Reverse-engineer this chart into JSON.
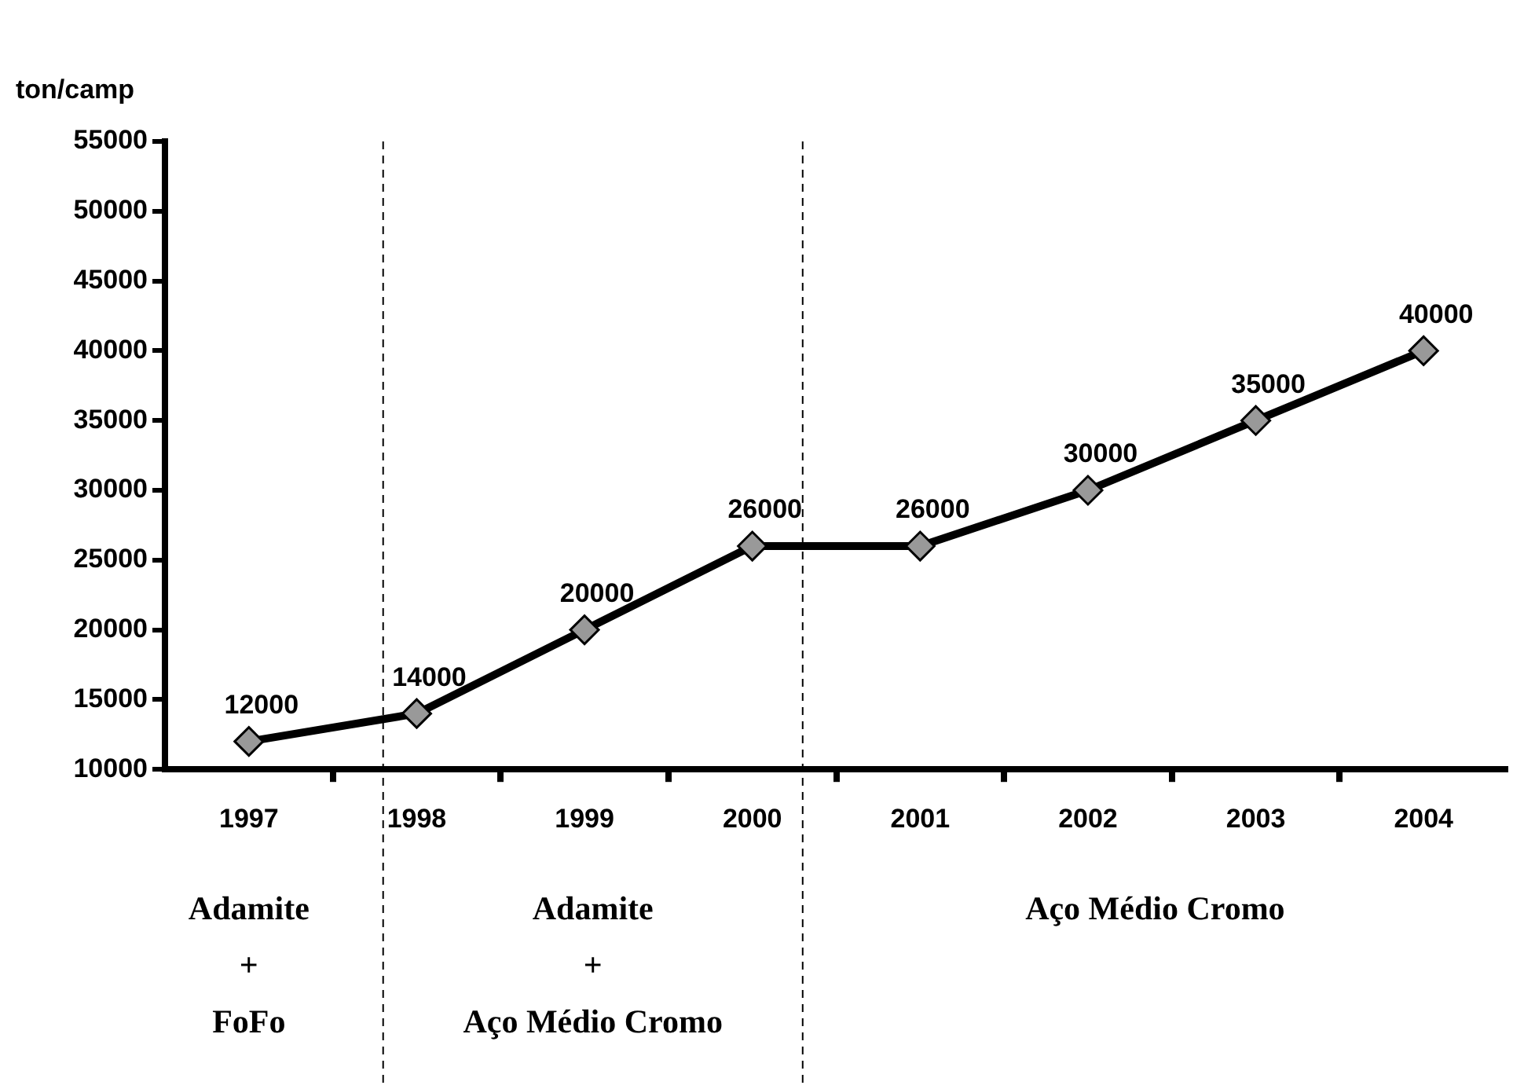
{
  "chart_data": {
    "type": "line",
    "ylabel": "ton/camp",
    "x": [
      1997,
      1998,
      1999,
      2000,
      2001,
      2002,
      2003,
      2004
    ],
    "values": [
      12000,
      14000,
      20000,
      26000,
      26000,
      30000,
      35000,
      40000
    ],
    "color": "#000000",
    "marker": "diamond",
    "xlim": [
      1996.5,
      2004.5
    ],
    "xticks": [
      {
        "value": 1997,
        "label": "1997"
      },
      {
        "value": 1998,
        "label": "1998"
      },
      {
        "value": 1999,
        "label": "1999"
      },
      {
        "value": 2000,
        "label": "2000"
      },
      {
        "value": 2001,
        "label": "2001"
      },
      {
        "value": 2002,
        "label": "2002"
      },
      {
        "value": 2003,
        "label": "2003"
      },
      {
        "value": 2004,
        "label": "2004"
      },
      {
        "value": 1997.5,
        "label": null
      },
      {
        "value": 1998.5,
        "label": null
      },
      {
        "value": 1999.5,
        "label": null
      },
      {
        "value": 2000.5,
        "label": null
      },
      {
        "value": 2001.5,
        "label": null
      },
      {
        "value": 2002.5,
        "label": null
      },
      {
        "value": 2003.5,
        "label": null
      }
    ],
    "ylim": [
      10000,
      55000
    ],
    "yticks": [
      10000,
      15000,
      20000,
      25000,
      30000,
      35000,
      40000,
      45000,
      50000,
      55000
    ],
    "grid": false,
    "legend": false,
    "data_labels": true,
    "line_style": "solid",
    "ref_lines": [
      {
        "axis": "x",
        "value": 1997.8,
        "line_style": "dashed",
        "color": "#000000"
      },
      {
        "axis": "x",
        "value": 2000.3,
        "line_style": "dashed",
        "color": "#000000"
      }
    ],
    "annotations": [
      "Adamite\n+\nFoFo",
      "Adamite\n+\nAço Médio Cromo",
      "Aço Médio Cromo"
    ]
  }
}
